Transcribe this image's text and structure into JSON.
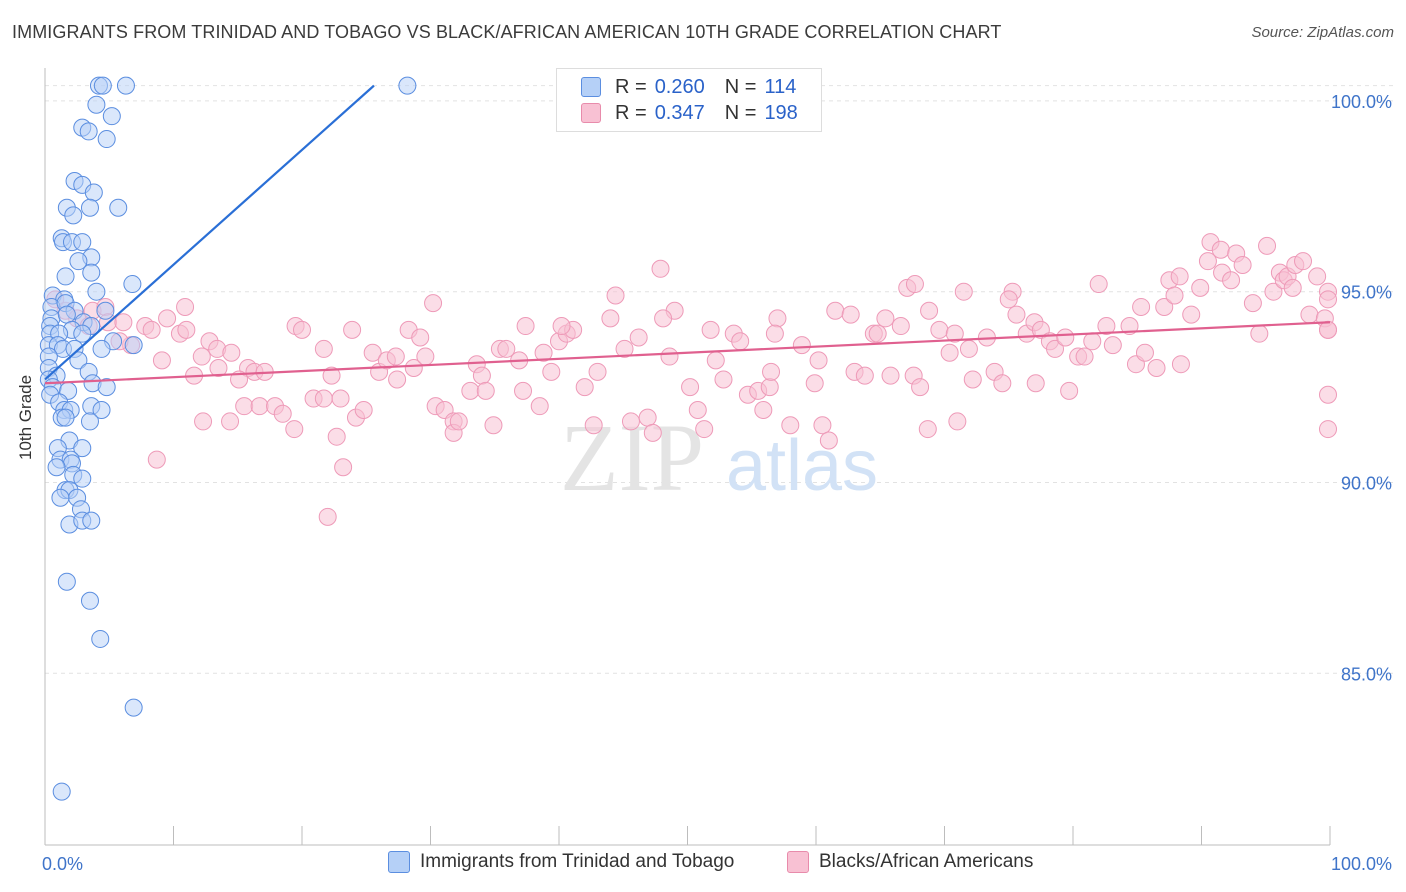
{
  "title": "IMMIGRANTS FROM TRINIDAD AND TOBAGO VS BLACK/AFRICAN AMERICAN 10TH GRADE CORRELATION CHART",
  "source": "Source: ZipAtlas.com",
  "watermark": {
    "zip": "ZIP",
    "atlas": "atlas"
  },
  "legend": {
    "rows": [
      {
        "r_label": "R =",
        "r_value": "0.260",
        "n_label": "N =",
        "n_value": "114",
        "color": "#9ec2f5"
      },
      {
        "r_label": "R =",
        "r_value": "0.347",
        "n_label": "N =",
        "n_value": "198",
        "color": "#f6b3c9"
      }
    ]
  },
  "colors": {
    "blue": "#2a6fd6",
    "blue_fill": "#b5d0f7",
    "pink": "#e0608f",
    "pink_fill": "#f8c1d3",
    "tick_text": "#3f74c9"
  },
  "chart_data": {
    "type": "scatter",
    "title": "IMMIGRANTS FROM TRINIDAD AND TOBAGO VS BLACK/AFRICAN AMERICAN 10TH GRADE CORRELATION CHART",
    "xlabel": "",
    "ylabel": "10th Grade",
    "xlim": [
      0,
      100
    ],
    "ylim": [
      80.5,
      100.6
    ],
    "x_tick_labels": [
      "0.0%",
      "100.0%"
    ],
    "y_ticks": [
      85,
      90,
      95,
      100
    ],
    "y_tick_labels": [
      "85.0%",
      "90.0%",
      "95.0%",
      "100.0%"
    ],
    "grid": true,
    "legend_position": "top-center",
    "series": [
      {
        "name": "Immigrants from Trinidad and Tobago",
        "color": "#2a6fd6",
        "r": 0.26,
        "n": 114,
        "trend": {
          "x": [
            0.0,
            25.6
          ],
          "y": [
            92.7,
            100.4
          ]
        },
        "points": [
          [
            4.2,
            100.4
          ],
          [
            4.5,
            100.4
          ],
          [
            6.3,
            100.4
          ],
          [
            28.2,
            100.4
          ],
          [
            4.0,
            99.9
          ],
          [
            5.2,
            99.6
          ],
          [
            2.9,
            99.3
          ],
          [
            3.4,
            99.2
          ],
          [
            4.8,
            99.0
          ],
          [
            2.3,
            97.9
          ],
          [
            2.9,
            97.8
          ],
          [
            3.8,
            97.6
          ],
          [
            1.7,
            97.2
          ],
          [
            3.5,
            97.2
          ],
          [
            5.7,
            97.2
          ],
          [
            2.2,
            97.0
          ],
          [
            1.3,
            96.4
          ],
          [
            1.4,
            96.3
          ],
          [
            2.1,
            96.3
          ],
          [
            2.9,
            96.3
          ],
          [
            3.6,
            95.9
          ],
          [
            2.6,
            95.8
          ],
          [
            3.6,
            95.5
          ],
          [
            1.6,
            95.4
          ],
          [
            6.8,
            95.2
          ],
          [
            4.0,
            95.0
          ],
          [
            0.6,
            94.9
          ],
          [
            1.5,
            94.8
          ],
          [
            0.5,
            94.6
          ],
          [
            1.6,
            94.7
          ],
          [
            2.3,
            94.5
          ],
          [
            4.7,
            94.5
          ],
          [
            0.5,
            94.3
          ],
          [
            1.7,
            94.4
          ],
          [
            3.0,
            94.2
          ],
          [
            0.4,
            94.1
          ],
          [
            2.1,
            94.0
          ],
          [
            3.6,
            94.1
          ],
          [
            0.4,
            93.9
          ],
          [
            1.1,
            93.9
          ],
          [
            2.9,
            93.9
          ],
          [
            5.3,
            93.7
          ],
          [
            0.3,
            93.6
          ],
          [
            1.0,
            93.6
          ],
          [
            1.4,
            93.5
          ],
          [
            2.3,
            93.5
          ],
          [
            4.4,
            93.5
          ],
          [
            6.9,
            93.6
          ],
          [
            0.3,
            93.3
          ],
          [
            2.6,
            93.2
          ],
          [
            0.3,
            93.0
          ],
          [
            0.9,
            92.8
          ],
          [
            3.4,
            92.9
          ],
          [
            0.3,
            92.7
          ],
          [
            0.6,
            92.5
          ],
          [
            1.8,
            92.4
          ],
          [
            3.7,
            92.6
          ],
          [
            4.8,
            92.5
          ],
          [
            0.4,
            92.3
          ],
          [
            1.1,
            92.1
          ],
          [
            1.5,
            91.9
          ],
          [
            2.0,
            91.9
          ],
          [
            3.6,
            92.0
          ],
          [
            4.4,
            91.9
          ],
          [
            1.3,
            91.7
          ],
          [
            1.6,
            91.7
          ],
          [
            3.5,
            91.6
          ],
          [
            1.9,
            91.1
          ],
          [
            2.9,
            90.9
          ],
          [
            1.0,
            90.9
          ],
          [
            1.2,
            90.6
          ],
          [
            2.0,
            90.6
          ],
          [
            2.1,
            90.5
          ],
          [
            0.9,
            90.4
          ],
          [
            2.2,
            90.2
          ],
          [
            2.9,
            90.1
          ],
          [
            1.6,
            89.8
          ],
          [
            1.9,
            89.8
          ],
          [
            2.5,
            89.6
          ],
          [
            1.2,
            89.6
          ],
          [
            2.8,
            89.3
          ],
          [
            1.9,
            88.9
          ],
          [
            2.9,
            89.0
          ],
          [
            3.6,
            89.0
          ],
          [
            1.7,
            87.4
          ],
          [
            3.5,
            86.9
          ],
          [
            4.3,
            85.9
          ],
          [
            6.9,
            84.1
          ],
          [
            1.3,
            81.9
          ]
        ]
      },
      {
        "name": "Blacks/African Americans",
        "color": "#e0608f",
        "r": 0.347,
        "n": 198,
        "trend": {
          "x": [
            0.0,
            100.0
          ],
          "y": [
            92.6,
            94.2
          ]
        },
        "points": [
          [
            0.8,
            94.8
          ],
          [
            1.6,
            94.5
          ],
          [
            2.5,
            94.3
          ],
          [
            3.7,
            94.5
          ],
          [
            4.7,
            94.6
          ],
          [
            3.4,
            94.1
          ],
          [
            4.9,
            94.2
          ],
          [
            6.1,
            94.2
          ],
          [
            6.7,
            93.6
          ],
          [
            5.8,
            93.7
          ],
          [
            7.8,
            94.1
          ],
          [
            8.3,
            94.0
          ],
          [
            9.5,
            94.3
          ],
          [
            10.9,
            94.6
          ],
          [
            10.5,
            93.9
          ],
          [
            11.0,
            94.0
          ],
          [
            12.8,
            93.7
          ],
          [
            13.4,
            93.5
          ],
          [
            11.6,
            92.8
          ],
          [
            12.2,
            93.3
          ],
          [
            13.5,
            93.0
          ],
          [
            14.5,
            93.4
          ],
          [
            9.1,
            93.2
          ],
          [
            8.7,
            90.6
          ],
          [
            15.8,
            93.0
          ],
          [
            16.3,
            92.9
          ],
          [
            15.1,
            92.7
          ],
          [
            17.1,
            92.9
          ],
          [
            15.5,
            92.0
          ],
          [
            16.7,
            92.0
          ],
          [
            17.9,
            92.0
          ],
          [
            18.5,
            91.8
          ],
          [
            19.4,
            91.4
          ],
          [
            12.3,
            91.6
          ],
          [
            14.4,
            91.6
          ],
          [
            19.5,
            94.1
          ],
          [
            20.0,
            94.0
          ],
          [
            21.7,
            93.5
          ],
          [
            22.3,
            92.8
          ],
          [
            20.9,
            92.2
          ],
          [
            21.7,
            92.2
          ],
          [
            23.0,
            92.2
          ],
          [
            24.2,
            91.7
          ],
          [
            24.8,
            91.9
          ],
          [
            23.9,
            94.0
          ],
          [
            25.5,
            93.4
          ],
          [
            26.0,
            92.9
          ],
          [
            26.6,
            93.2
          ],
          [
            27.3,
            93.3
          ],
          [
            27.4,
            92.7
          ],
          [
            28.7,
            93.0
          ],
          [
            28.3,
            94.0
          ],
          [
            29.2,
            93.8
          ],
          [
            29.6,
            93.3
          ],
          [
            30.4,
            92.0
          ],
          [
            30.2,
            94.7
          ],
          [
            31.1,
            91.9
          ],
          [
            31.8,
            91.6
          ],
          [
            31.8,
            91.3
          ],
          [
            32.2,
            91.6
          ],
          [
            33.6,
            93.1
          ],
          [
            34.0,
            92.8
          ],
          [
            33.1,
            92.4
          ],
          [
            34.3,
            92.4
          ],
          [
            34.9,
            91.5
          ],
          [
            35.4,
            93.5
          ],
          [
            35.9,
            93.5
          ],
          [
            36.9,
            93.2
          ],
          [
            37.4,
            94.1
          ],
          [
            37.2,
            92.4
          ],
          [
            38.8,
            93.4
          ],
          [
            38.5,
            92.0
          ],
          [
            39.4,
            92.9
          ],
          [
            40.0,
            93.7
          ],
          [
            40.6,
            93.9
          ],
          [
            41.1,
            94.0
          ],
          [
            40.2,
            94.1
          ],
          [
            42.0,
            92.5
          ],
          [
            43.0,
            92.9
          ],
          [
            42.7,
            91.5
          ],
          [
            44.0,
            94.3
          ],
          [
            44.4,
            94.9
          ],
          [
            45.1,
            93.5
          ],
          [
            45.6,
            91.6
          ],
          [
            46.2,
            93.8
          ],
          [
            46.9,
            91.7
          ],
          [
            47.3,
            91.3
          ],
          [
            48.6,
            93.3
          ],
          [
            49.0,
            94.5
          ],
          [
            48.1,
            94.3
          ],
          [
            47.9,
            95.6
          ],
          [
            50.2,
            92.5
          ],
          [
            50.8,
            91.9
          ],
          [
            51.3,
            91.4
          ],
          [
            51.8,
            94.0
          ],
          [
            52.2,
            93.2
          ],
          [
            52.8,
            92.7
          ],
          [
            53.6,
            93.9
          ],
          [
            54.1,
            93.7
          ],
          [
            54.7,
            92.3
          ],
          [
            55.5,
            92.4
          ],
          [
            55.9,
            91.9
          ],
          [
            56.4,
            92.5
          ],
          [
            56.5,
            92.9
          ],
          [
            57.0,
            94.3
          ],
          [
            56.8,
            93.9
          ],
          [
            58.0,
            91.5
          ],
          [
            58.9,
            93.6
          ],
          [
            59.9,
            92.6
          ],
          [
            60.2,
            93.2
          ],
          [
            60.5,
            91.5
          ],
          [
            61.0,
            91.1
          ],
          [
            61.5,
            94.5
          ],
          [
            62.7,
            94.4
          ],
          [
            63.0,
            92.9
          ],
          [
            63.8,
            92.8
          ],
          [
            64.5,
            93.9
          ],
          [
            64.8,
            93.9
          ],
          [
            65.4,
            94.3
          ],
          [
            65.8,
            92.8
          ],
          [
            66.6,
            94.1
          ],
          [
            67.1,
            95.1
          ],
          [
            67.7,
            95.2
          ],
          [
            67.6,
            92.8
          ],
          [
            68.1,
            92.5
          ],
          [
            68.7,
            91.4
          ],
          [
            68.8,
            94.5
          ],
          [
            69.6,
            94.0
          ],
          [
            70.4,
            93.4
          ],
          [
            70.8,
            93.9
          ],
          [
            71.0,
            91.6
          ],
          [
            71.5,
            95.0
          ],
          [
            71.9,
            93.5
          ],
          [
            72.2,
            92.7
          ],
          [
            73.3,
            93.8
          ],
          [
            73.9,
            92.9
          ],
          [
            74.5,
            92.6
          ],
          [
            75.3,
            95.0
          ],
          [
            75.6,
            94.4
          ],
          [
            75.0,
            94.8
          ],
          [
            76.4,
            93.9
          ],
          [
            77.0,
            94.2
          ],
          [
            77.1,
            92.6
          ],
          [
            77.5,
            94.0
          ],
          [
            78.2,
            93.7
          ],
          [
            78.6,
            93.5
          ],
          [
            79.4,
            93.8
          ],
          [
            79.7,
            92.4
          ],
          [
            80.4,
            93.3
          ],
          [
            80.9,
            93.3
          ],
          [
            81.5,
            93.7
          ],
          [
            82.0,
            95.2
          ],
          [
            82.6,
            94.1
          ],
          [
            83.1,
            93.6
          ],
          [
            84.4,
            94.1
          ],
          [
            84.9,
            93.1
          ],
          [
            85.3,
            94.6
          ],
          [
            85.6,
            93.4
          ],
          [
            86.5,
            93.0
          ],
          [
            87.1,
            94.6
          ],
          [
            87.5,
            95.3
          ],
          [
            87.9,
            94.9
          ],
          [
            88.4,
            93.1
          ],
          [
            88.3,
            95.4
          ],
          [
            89.2,
            94.4
          ],
          [
            89.9,
            95.1
          ],
          [
            90.5,
            95.8
          ],
          [
            90.7,
            96.3
          ],
          [
            91.5,
            96.1
          ],
          [
            91.6,
            95.5
          ],
          [
            92.3,
            95.3
          ],
          [
            92.7,
            96.0
          ],
          [
            93.2,
            95.7
          ],
          [
            94.0,
            94.7
          ],
          [
            94.5,
            93.9
          ],
          [
            95.1,
            96.2
          ],
          [
            95.6,
            95.0
          ],
          [
            96.1,
            95.5
          ],
          [
            96.4,
            95.3
          ],
          [
            96.7,
            95.4
          ],
          [
            97.1,
            95.1
          ],
          [
            97.3,
            95.7
          ],
          [
            97.9,
            95.8
          ],
          [
            98.4,
            94.4
          ],
          [
            99.0,
            95.4
          ],
          [
            99.6,
            94.3
          ],
          [
            100.0,
            95.0
          ],
          [
            100.8,
            91.4
          ],
          [
            101.2,
            92.3
          ],
          [
            101.9,
            94.0
          ],
          [
            102.4,
            94.8
          ],
          [
            103.0,
            94.0
          ],
          [
            22.7,
            91.2
          ],
          [
            23.2,
            90.4
          ],
          [
            22.0,
            89.1
          ]
        ]
      }
    ]
  },
  "bottom_legend": [
    "Immigrants from Trinidad and Tobago",
    "Blacks/African Americans"
  ]
}
